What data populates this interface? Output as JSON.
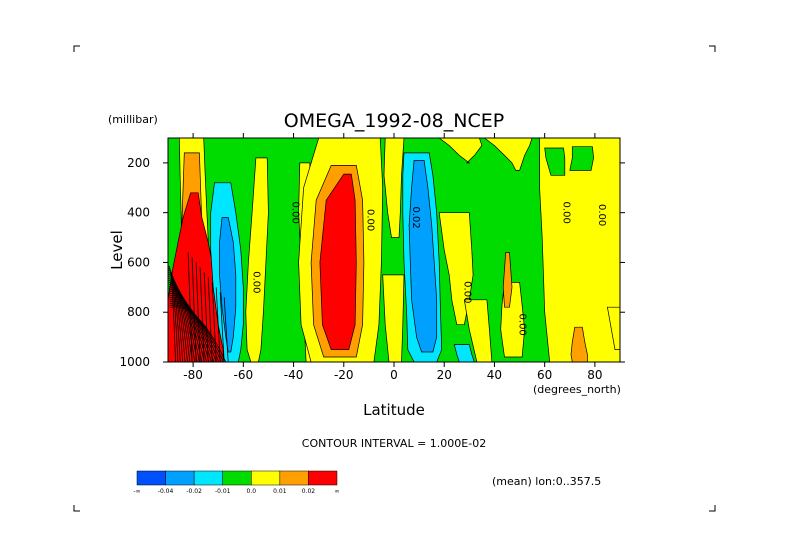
{
  "chart_data": {
    "type": "heatmap",
    "title": "OMEGA_1992-08_NCEP",
    "xlabel": "Latitude",
    "ylabel": "Level",
    "x_unit": "(degrees_north)",
    "y_unit": "(millibar)",
    "xlim": [
      -90,
      90
    ],
    "ylim": [
      1000,
      100
    ],
    "x_ticks": [
      "-80",
      "-60",
      "-40",
      "-20",
      "0",
      "20",
      "40",
      "60",
      "80"
    ],
    "x_tick_values": [
      -80,
      -60,
      -40,
      -20,
      0,
      20,
      40,
      60,
      80
    ],
    "y_ticks": [
      "200",
      "400",
      "600",
      "800",
      "1000"
    ],
    "y_tick_values": [
      200,
      400,
      600,
      800,
      1000
    ],
    "contour_interval_text": "CONTOUR INTERVAL = 1.000E-02",
    "mean_text": "(mean) lon:0..357.5",
    "colorbar": {
      "colors": [
        "#0050ff",
        "#00a0ff",
        "#00e6ff",
        "#00dc00",
        "#ffff00",
        "#ffa000",
        "#ff0000"
      ],
      "labels": [
        "-∞",
        "-0.04",
        "-0.02",
        "-0.01",
        "0.0",
        "0.01",
        "0.02",
        "∞"
      ]
    },
    "contour_labels": [
      {
        "text": "0.00",
        "lat": -40.5,
        "level": 400
      },
      {
        "text": "0.00",
        "lat": -10.5,
        "level": 430
      },
      {
        "text": "0.00",
        "lat": -56,
        "level": 680
      },
      {
        "text": "0.02",
        "lat": 7.5,
        "level": 420
      },
      {
        "text": "0.00",
        "lat": 67.5,
        "level": 400
      },
      {
        "text": "0.00",
        "lat": 81.5,
        "level": 410
      },
      {
        "text": "0.00",
        "lat": 28,
        "level": 720
      },
      {
        "text": "0.00",
        "lat": 50,
        "level": 850
      }
    ],
    "regions": [
      {
        "name": "band-yellow-left",
        "color": "#ffff00",
        "lat_left": [
          -85.5,
          -85.2,
          -84.8,
          -84.5,
          -84.2,
          -84,
          -83.5
        ],
        "lat_right": [
          -75.8,
          -75.2,
          -74.5,
          -73.8,
          -73,
          -72.2,
          -71.5
        ],
        "levels": [
          100,
          250,
          400,
          550,
          700,
          850,
          1000
        ]
      },
      {
        "name": "band-orange-left",
        "color": "#ffa000",
        "lat_left": [
          -83.5,
          -84,
          -84.5,
          -85,
          -85.5,
          -86,
          -86.5
        ],
        "lat_right": [
          -77.5,
          -77,
          -76.5,
          -75.8,
          -75,
          -74.2,
          -73.5
        ],
        "levels": [
          160,
          300,
          450,
          600,
          750,
          880,
          1000
        ]
      },
      {
        "name": "band-red-left",
        "color": "#ff0000",
        "lat_left": [
          -81,
          -84,
          -86,
          -88,
          -90,
          -90,
          -90
        ],
        "lat_right": [
          -78,
          -76.5,
          -74,
          -72,
          -70,
          -68.5,
          -67
        ],
        "levels": [
          320,
          420,
          520,
          620,
          750,
          880,
          1000
        ]
      },
      {
        "name": "band-cyan-left",
        "color": "#00e6ff",
        "lat_left": [
          -71.5,
          -73,
          -73,
          -72,
          -70,
          -68,
          -68
        ],
        "lat_right": [
          -65,
          -63,
          -61,
          -60,
          -60,
          -61,
          -62
        ],
        "levels": [
          280,
          400,
          550,
          700,
          850,
          950,
          1000
        ]
      },
      {
        "name": "band-blue-left",
        "color": "#00a0ff",
        "lat_left": [
          -68.5,
          -69.5,
          -69.5,
          -68.5,
          -67,
          -66
        ],
        "lat_right": [
          -66,
          -64,
          -63,
          -63,
          -64,
          -65
        ],
        "levels": [
          420,
          520,
          650,
          780,
          900,
          960
        ]
      },
      {
        "name": "band-yellow-a",
        "color": "#ffff00",
        "lat_left": [
          -55,
          -56.5,
          -58,
          -59,
          -58.5,
          -57
        ],
        "lat_right": [
          -50.5,
          -50,
          -51,
          -52,
          -53,
          -54
        ],
        "levels": [
          180,
          400,
          600,
          800,
          950,
          1000
        ]
      },
      {
        "name": "band-yellow-b",
        "color": "#ffff00",
        "lat_left": [
          -37.5,
          -38,
          -37,
          -36,
          -35
        ],
        "lat_right": [
          -33.5,
          -34,
          -33,
          -32,
          -31
        ],
        "levels": [
          200,
          400,
          600,
          800,
          1000
        ]
      },
      {
        "name": "big-yellow",
        "color": "#ffff00",
        "lat_left": [
          -30,
          -36,
          -38,
          -37,
          -33
        ],
        "lat_right": [
          -5.5,
          -4.5,
          -5,
          -6,
          -8
        ],
        "levels": [
          100,
          300,
          600,
          850,
          1000
        ]
      },
      {
        "name": "big-orange",
        "color": "#ffa000",
        "lat_left": [
          -25,
          -31,
          -33,
          -32,
          -28
        ],
        "lat_right": [
          -15,
          -12.5,
          -12,
          -12.5,
          -15
        ],
        "levels": [
          210,
          350,
          600,
          850,
          980
        ]
      },
      {
        "name": "big-red",
        "color": "#ff0000",
        "lat_left": [
          -20,
          -27,
          -29.5,
          -28.5,
          -25
        ],
        "lat_right": [
          -17,
          -15.5,
          -15,
          -15.5,
          -18
        ],
        "levels": [
          245,
          350,
          600,
          850,
          950
        ]
      },
      {
        "name": "yellow-upper-center",
        "color": "#ffff00",
        "lat_left": [
          -3.5,
          -4,
          -2.5,
          -1
        ],
        "lat_right": [
          4,
          3,
          2.5,
          2
        ],
        "levels": [
          100,
          250,
          400,
          500
        ]
      },
      {
        "name": "yellow-lower-center",
        "color": "#ffff00",
        "lat_left": [
          -4.5,
          -3.5,
          -2
        ],
        "lat_right": [
          4,
          3.5,
          3
        ],
        "levels": [
          650,
          850,
          1000
        ]
      },
      {
        "name": "cyan-center",
        "color": "#00e6ff",
        "lat_left": [
          4,
          3.5,
          3.5,
          4,
          5,
          5.5,
          8
        ],
        "lat_right": [
          14,
          15.5,
          17,
          18,
          18.5,
          19,
          17
        ],
        "levels": [
          160,
          250,
          400,
          600,
          800,
          950,
          1000
        ]
      },
      {
        "name": "blue-center",
        "color": "#00a0ff",
        "lat_left": [
          8,
          7,
          6,
          6.5,
          7,
          9,
          11
        ],
        "lat_right": [
          12,
          13.5,
          15,
          16,
          17,
          17,
          15.5
        ],
        "levels": [
          190,
          300,
          450,
          600,
          750,
          900,
          960
        ]
      },
      {
        "name": "yellow-top-center",
        "color": "#ffff00",
        "lat_left": [
          18,
          22,
          26,
          30
        ],
        "lat_right": [
          34,
          35,
          32,
          29
        ],
        "levels": [
          100,
          130,
          170,
          200
        ]
      },
      {
        "name": "yellow-mid-center",
        "color": "#ffff00",
        "lat_left": [
          18,
          20,
          22,
          23,
          25
        ],
        "lat_right": [
          30,
          31,
          31.5,
          30,
          28
        ],
        "levels": [
          400,
          550,
          650,
          750,
          850
        ]
      },
      {
        "name": "yellow-bottom-center",
        "color": "#ffff00",
        "lat_left": [
          28,
          30,
          33
        ],
        "lat_right": [
          37,
          38,
          39
        ],
        "levels": [
          750,
          870,
          1000
        ]
      },
      {
        "name": "yellow-top-right",
        "color": "#ffff00",
        "lat_left": [
          36,
          40,
          44,
          47,
          48.5
        ],
        "lat_right": [
          55,
          54,
          52,
          51,
          50
        ],
        "levels": [
          100,
          130,
          170,
          200,
          230
        ]
      },
      {
        "name": "yellow-right",
        "color": "#ffff00",
        "lat_left": [
          58,
          58,
          59,
          60,
          62
        ],
        "lat_right": [
          90,
          90,
          90,
          90,
          90
        ],
        "levels": [
          100,
          300,
          500,
          800,
          1000
        ]
      },
      {
        "name": "green-right-a",
        "color": "#00dc00",
        "lat_left": [
          60,
          60.5,
          62.5
        ],
        "lat_right": [
          67.5,
          68,
          68
        ],
        "levels": [
          140,
          180,
          250
        ]
      },
      {
        "name": "green-right-b",
        "color": "#00dc00",
        "lat_left": [
          71,
          71,
          70
        ],
        "lat_right": [
          79,
          79.5,
          78.5
        ],
        "levels": [
          135,
          180,
          230
        ]
      },
      {
        "name": "orange-right",
        "color": "#ffa000",
        "lat_left": [
          72,
          71,
          70.5,
          71
        ],
        "lat_right": [
          75,
          76,
          77,
          77
        ],
        "levels": [
          860,
          920,
          970,
          1000
        ]
      },
      {
        "name": "yellow-east-mid",
        "color": "#ffff00",
        "lat_left": [
          44,
          43,
          42.5,
          44
        ],
        "lat_right": [
          50,
          51,
          52,
          51
        ],
        "levels": [
          680,
          770,
          870,
          980
        ]
      },
      {
        "name": "orange-east",
        "color": "#ffa000",
        "lat_left": [
          44.5,
          43.5,
          44
        ],
        "lat_right": [
          46,
          47,
          46
        ],
        "levels": [
          560,
          700,
          780
        ]
      },
      {
        "name": "cyan-lower",
        "color": "#00e6ff",
        "lat_left": [
          24,
          25,
          26
        ],
        "lat_right": [
          30,
          31,
          32
        ],
        "levels": [
          930,
          970,
          1000
        ]
      },
      {
        "name": "yellow-edge-right",
        "color": "#ffff00",
        "lat_left": [
          85,
          88
        ],
        "lat_right": [
          90,
          90
        ],
        "levels": [
          780,
          950
        ]
      }
    ]
  }
}
